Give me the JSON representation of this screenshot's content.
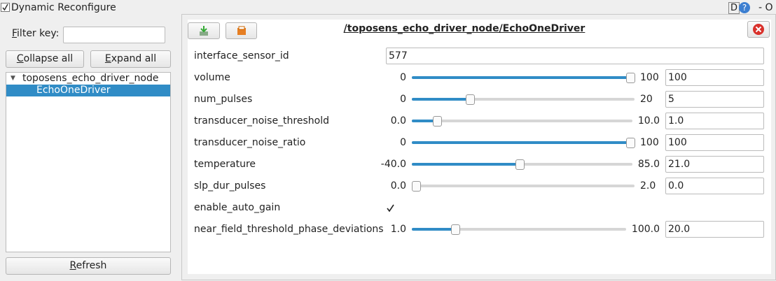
{
  "window": {
    "title": "Dynamic Reconfigure",
    "controls": [
      "D",
      "?",
      "- O"
    ]
  },
  "sidebar": {
    "filter_label": "Filter key:",
    "filter_value": "",
    "collapse_button": "Collapse all",
    "expand_button": "Expand all",
    "tree": [
      {
        "label": "toposens_echo_driver_node",
        "children": [
          {
            "label": "EchoOneDriver",
            "selected": true
          }
        ]
      }
    ],
    "refresh_button": "Refresh"
  },
  "panel": {
    "title": "/toposens_echo_driver_node/EchoOneDriver",
    "params": [
      {
        "name": "interface_sensor_id",
        "kind": "text",
        "value": "577"
      },
      {
        "name": "volume",
        "kind": "slider",
        "min": "0",
        "max": "100",
        "value": "100"
      },
      {
        "name": "num_pulses",
        "kind": "slider",
        "min": "0",
        "max": "20",
        "value": "5"
      },
      {
        "name": "transducer_noise_threshold",
        "kind": "slider",
        "min": "0.0",
        "max": "10.0",
        "value": "1.0"
      },
      {
        "name": "transducer_noise_ratio",
        "kind": "slider",
        "min": "0",
        "max": "100",
        "value": "100"
      },
      {
        "name": "temperature",
        "kind": "slider",
        "min": "-40.0",
        "max": "85.0",
        "value": "21.0"
      },
      {
        "name": "slp_dur_pulses",
        "kind": "slider",
        "min": "0.0",
        "max": "2.0",
        "value": "0.0"
      },
      {
        "name": "enable_auto_gain",
        "kind": "checkbox",
        "checked": true
      },
      {
        "name": "near_field_threshold_phase_deviations",
        "kind": "slider",
        "min": "1.0",
        "max": "100.0",
        "value": "20.0"
      }
    ]
  }
}
